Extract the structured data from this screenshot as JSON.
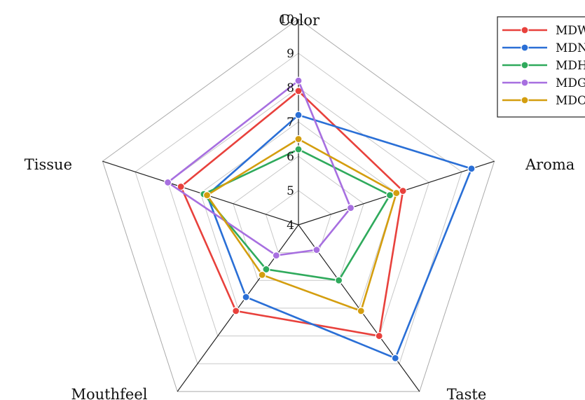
{
  "chart_data": {
    "type": "radar",
    "axes": [
      "Color",
      "Aroma",
      "Taste",
      "Mouthfeel",
      "Tissue"
    ],
    "ticks": [
      "4",
      "5",
      "6",
      "7",
      "8",
      "9",
      "10"
    ],
    "range": [
      4,
      10
    ],
    "grid": true,
    "legend_position": "top-right",
    "series": [
      {
        "name": "MDW",
        "color": "#e8413c",
        "values": [
          7.9,
          7.2,
          8.0,
          7.1,
          7.6
        ]
      },
      {
        "name": "MDN",
        "color": "#2a6fd6",
        "values": [
          7.2,
          9.3,
          8.8,
          6.6,
          6.8
        ]
      },
      {
        "name": "MDH",
        "color": "#2faa5c",
        "values": [
          6.2,
          6.8,
          6.0,
          5.6,
          6.9
        ]
      },
      {
        "name": "MDG",
        "color": "#a76fe0",
        "values": [
          8.2,
          5.6,
          4.9,
          5.1,
          8.0
        ]
      },
      {
        "name": "MDO",
        "color": "#d49e0f",
        "values": [
          6.5,
          7.0,
          7.1,
          5.8,
          6.8
        ]
      }
    ]
  }
}
